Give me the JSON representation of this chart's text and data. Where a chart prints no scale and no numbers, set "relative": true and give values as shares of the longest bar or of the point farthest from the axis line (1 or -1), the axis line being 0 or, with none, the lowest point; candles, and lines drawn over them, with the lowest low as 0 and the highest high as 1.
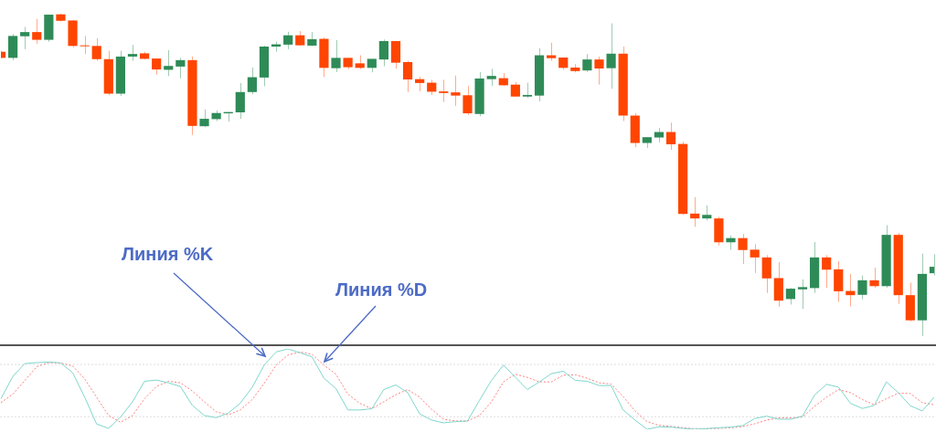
{
  "chart_data": [
    {
      "type": "candlestick",
      "relative": true,
      "categories": [
        null,
        null,
        null,
        null,
        null,
        null,
        null,
        null,
        null,
        null,
        null,
        null,
        null,
        null,
        null,
        null,
        null,
        null,
        null,
        null,
        null,
        null,
        null,
        null,
        null,
        null,
        null,
        null,
        null,
        null,
        null,
        null,
        null,
        null,
        null,
        null,
        null,
        null,
        null,
        null,
        null,
        null,
        null,
        null,
        null,
        null,
        null,
        null,
        null,
        null,
        null,
        null,
        null,
        null,
        null,
        null,
        null,
        null,
        null,
        null,
        null,
        null,
        null,
        null,
        null,
        null,
        null,
        null,
        null,
        null,
        null,
        null,
        null,
        null,
        null,
        null,
        null,
        null,
        null
      ],
      "ohlc": [
        [
          0.882,
          0.884,
          0.861,
          0.863
        ],
        [
          0.863,
          0.937,
          0.856,
          0.931
        ],
        [
          0.93,
          0.959,
          0.89,
          0.943
        ],
        [
          0.943,
          0.984,
          0.907,
          0.919
        ],
        [
          0.919,
          0.997,
          0.913,
          0.997
        ],
        [
          0.998,
          1,
          0.976,
          0.978
        ],
        [
          0.979,
          0.981,
          0.896,
          0.9
        ],
        [
          0.901,
          0.931,
          0.875,
          0.899
        ],
        [
          0.9,
          0.924,
          0.854,
          0.859
        ],
        [
          0.859,
          0.885,
          0.747,
          0.752
        ],
        [
          0.752,
          0.885,
          0.745,
          0.867
        ],
        [
          0.867,
          0.903,
          0.854,
          0.875
        ],
        [
          0.877,
          0.882,
          0.858,
          0.86
        ],
        [
          0.861,
          0.861,
          0.811,
          0.827
        ],
        [
          0.826,
          0.887,
          0.807,
          0.838
        ],
        [
          0.836,
          0.863,
          0.8,
          0.856
        ],
        [
          0.856,
          0.867,
          0.624,
          0.652
        ],
        [
          0.651,
          0.703,
          0.648,
          0.674
        ],
        [
          0.673,
          0.7,
          0.667,
          0.692
        ],
        [
          0.691,
          0.695,
          0.665,
          0.695
        ],
        [
          0.694,
          0.785,
          0.674,
          0.757
        ],
        [
          0.757,
          0.833,
          0.75,
          0.803
        ],
        [
          0.802,
          0.901,
          0.775,
          0.898
        ],
        [
          0.898,
          0.913,
          0.882,
          0.905
        ],
        [
          0.904,
          0.944,
          0.89,
          0.933
        ],
        [
          0.933,
          0.946,
          0.901,
          0.902
        ],
        [
          0.901,
          0.943,
          0.899,
          0.921
        ],
        [
          0.922,
          0.926,
          0.804,
          0.832
        ],
        [
          0.831,
          0.918,
          0.819,
          0.863
        ],
        [
          0.863,
          0.863,
          0.828,
          0.834
        ],
        [
          0.846,
          0.871,
          0.828,
          0.832
        ],
        [
          0.832,
          0.86,
          0.818,
          0.86
        ],
        [
          0.858,
          0.92,
          0.837,
          0.915
        ],
        [
          0.915,
          0.915,
          0.83,
          0.848
        ],
        [
          0.85,
          0.854,
          0.757,
          0.796
        ],
        [
          0.797,
          0.804,
          0.759,
          0.785
        ],
        [
          0.786,
          0.795,
          0.748,
          0.758
        ],
        [
          0.759,
          0.795,
          0.726,
          0.754
        ],
        [
          0.756,
          0.808,
          0.714,
          0.746
        ],
        [
          0.747,
          0.776,
          0.686,
          0.691
        ],
        [
          0.689,
          0.819,
          0.682,
          0.799
        ],
        [
          0.797,
          0.829,
          0.776,
          0.807
        ],
        [
          0.8,
          0.816,
          0.776,
          0.778
        ],
        [
          0.78,
          0.788,
          0.743,
          0.743
        ],
        [
          0.743,
          0.786,
          0.739,
          0.748
        ],
        [
          0.746,
          0.893,
          0.728,
          0.871
        ],
        [
          0.871,
          0.91,
          0.854,
          0.862
        ],
        [
          0.864,
          0.864,
          0.827,
          0.832
        ],
        [
          0.833,
          0.844,
          0.818,
          0.822
        ],
        [
          0.824,
          0.875,
          0.819,
          0.858
        ],
        [
          0.858,
          0.867,
          0.78,
          0.83
        ],
        [
          0.831,
          0.97,
          0.767,
          0.876
        ],
        [
          0.876,
          0.898,
          0.667,
          0.684
        ],
        [
          0.684,
          0.691,
          0.586,
          0.599
        ],
        [
          0.599,
          0.617,
          0.584,
          0.617
        ],
        [
          0.616,
          0.646,
          0.601,
          0.633
        ],
        [
          0.633,
          0.662,
          0.578,
          0.595
        ],
        [
          0.596,
          0.603,
          0.376,
          0.379
        ],
        [
          0.38,
          0.431,
          0.339,
          0.365
        ],
        [
          0.365,
          0.405,
          0.359,
          0.376
        ],
        [
          0.365,
          0.37,
          0.281,
          0.291
        ],
        [
          0.291,
          0.312,
          0.268,
          0.304
        ],
        [
          0.304,
          0.317,
          0.224,
          0.267
        ],
        [
          0.268,
          0.285,
          0.196,
          0.244
        ],
        [
          0.244,
          0.251,
          0.134,
          0.179
        ],
        [
          0.18,
          0.229,
          0.091,
          0.11
        ],
        [
          0.115,
          0.149,
          0.098,
          0.147
        ],
        [
          0.145,
          0.176,
          0.084,
          0.152
        ],
        [
          0.149,
          0.292,
          0.134,
          0.244
        ],
        [
          0.244,
          0.251,
          0.15,
          0.206
        ],
        [
          0.207,
          0.232,
          0.106,
          0.139
        ],
        [
          0.14,
          0.193,
          0.092,
          0.127
        ],
        [
          0.128,
          0.188,
          0.114,
          0.173
        ],
        [
          0.173,
          0.212,
          0.15,
          0.155
        ],
        [
          0.155,
          0.344,
          0.15,
          0.314
        ],
        [
          0.314,
          0.32,
          0.1,
          0.127
        ],
        [
          0.127,
          0.166,
          0.046,
          0.049
        ],
        [
          0.049,
          0.256,
          0,
          0.193
        ],
        [
          0.195,
          0.254,
          0.188,
          0.215
        ]
      ],
      "colors": [
        "#ff4500",
        "#2e8b57",
        "#2e8b57",
        "#ff4500",
        "#2e8b57",
        "#ff4500",
        "#ff4500",
        "#ff4500",
        "#ff4500",
        "#ff4500",
        "#2e8b57",
        "#2e8b57",
        "#ff4500",
        "#ff4500",
        "#2e8b57",
        "#2e8b57",
        "#ff4500",
        "#2e8b57",
        "#2e8b57",
        "#2e8b57",
        "#2e8b57",
        "#2e8b57",
        "#2e8b57",
        "#2e8b57",
        "#2e8b57",
        "#ff4500",
        "#2e8b57",
        "#ff4500",
        "#2e8b57",
        "#ff4500",
        "#ff4500",
        "#2e8b57",
        "#2e8b57",
        "#ff4500",
        "#ff4500",
        "#ff4500",
        "#ff4500",
        "#ff4500",
        "#ff4500",
        "#ff4500",
        "#2e8b57",
        "#2e8b57",
        "#ff4500",
        "#ff4500",
        "#2e8b57",
        "#2e8b57",
        "#ff4500",
        "#ff4500",
        "#ff4500",
        "#2e8b57",
        "#ff4500",
        "#2e8b57",
        "#ff4500",
        "#ff4500",
        "#2e8b57",
        "#2e8b57",
        "#ff4500",
        "#ff4500",
        "#ff4500",
        "#2e8b57",
        "#ff4500",
        "#2e8b57",
        "#ff4500",
        "#ff4500",
        "#ff4500",
        "#ff4500",
        "#2e8b57",
        "#2e8b57",
        "#2e8b57",
        "#ff4500",
        "#ff4500",
        "#ff4500",
        "#2e8b57",
        "#ff4500",
        "#2e8b57",
        "#ff4500",
        "#ff4500",
        "#2e8b57",
        "#2e8b57"
      ]
    },
    {
      "type": "line",
      "relative": true,
      "categories": [
        null,
        null,
        null,
        null,
        null,
        null,
        null,
        null,
        null,
        null,
        null,
        null,
        null,
        null,
        null,
        null,
        null,
        null,
        null,
        null,
        null,
        null,
        null,
        null,
        null,
        null,
        null,
        null,
        null,
        null,
        null,
        null,
        null,
        null,
        null,
        null,
        null,
        null,
        null,
        null,
        null,
        null,
        null,
        null,
        null,
        null,
        null,
        null,
        null,
        null,
        null,
        null,
        null,
        null,
        null,
        null,
        null,
        null,
        null,
        null,
        null,
        null,
        null,
        null,
        null,
        null,
        null,
        null,
        null,
        null,
        null,
        null,
        null,
        null,
        null,
        null,
        null,
        null,
        null
      ],
      "series": [
        {
          "name": "Линия %K",
          "color": "#7fd6cc",
          "line_style": "solid",
          "values": [
            0.38,
            0.658,
            0.817,
            0.829,
            0.837,
            0.825,
            0.703,
            0.399,
            0.065,
            0.011,
            0.152,
            0.342,
            0.597,
            0.612,
            0.578,
            0.532,
            0.297,
            0.171,
            0.144,
            0.202,
            0.323,
            0.521,
            0.798,
            0.962,
            1,
            0.951,
            0.901,
            0.635,
            0.506,
            0.24,
            0.24,
            0.255,
            0.494,
            0.551,
            0.456,
            0.19,
            0.114,
            0.08,
            0.095,
            0.103,
            0.361,
            0.608,
            0.798,
            0.646,
            0.494,
            0.589,
            0.692,
            0.722,
            0.608,
            0.597,
            0.544,
            0.544,
            0.24,
            0.114,
            0,
            0.03,
            0.027,
            0.011,
            0,
            0.008,
            0.019,
            0.027,
            0.046,
            0.133,
            0.163,
            0.125,
            0.125,
            0.163,
            0.426,
            0.559,
            0.525,
            0.323,
            0.259,
            0.297,
            0.589,
            0.456,
            0.293,
            0.228,
            0.399
          ]
        },
        {
          "name": "Линия %D",
          "color": "#ff7f7f",
          "line_style": "dotted",
          "values": [
            0.331,
            0.437,
            0.608,
            0.779,
            0.829,
            0.825,
            0.787,
            0.627,
            0.399,
            0.171,
            0.087,
            0.171,
            0.38,
            0.532,
            0.597,
            0.578,
            0.475,
            0.342,
            0.217,
            0.179,
            0.24,
            0.369,
            0.57,
            0.798,
            0.924,
            0.962,
            0.932,
            0.798,
            0.684,
            0.437,
            0.323,
            0.255,
            0.342,
            0.43,
            0.494,
            0.399,
            0.247,
            0.125,
            0.103,
            0.103,
            0.171,
            0.342,
            0.589,
            0.684,
            0.646,
            0.589,
            0.589,
            0.673,
            0.677,
            0.635,
            0.578,
            0.563,
            0.407,
            0.228,
            0.095,
            0.049,
            0.034,
            0.019,
            0.004,
            0.008,
            0.011,
            0.019,
            0.034,
            0.068,
            0.114,
            0.141,
            0.141,
            0.152,
            0.285,
            0.399,
            0.494,
            0.456,
            0.369,
            0.304,
            0.38,
            0.449,
            0.445,
            0.331,
            0.304
          ]
        }
      ],
      "ref_lines": [
        {
          "axis": "y",
          "value": 0.806,
          "color": "#dddddd",
          "line_style": "dotted"
        },
        {
          "axis": "y",
          "value": 0.156,
          "color": "#dddddd",
          "line_style": "dotted"
        }
      ]
    }
  ]
}
